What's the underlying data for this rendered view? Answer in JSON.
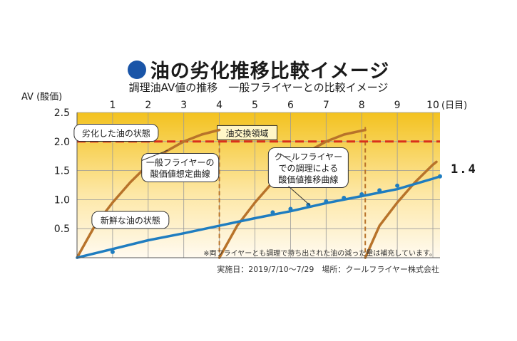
{
  "header": {
    "title": "油の劣化推移比較イメージ",
    "subtitle": "調理油AV値の推移　一般フライヤーとの比較イメージ"
  },
  "chart_data": {
    "type": "line",
    "title": "油の劣化推移比較イメージ",
    "subtitle": "調理油AV値の推移　一般フライヤーとの比較イメージ",
    "ylabel": "AV (酸価)",
    "xlabel": "(日目)",
    "xlim": [
      0,
      10.2
    ],
    "ylim": [
      0,
      2.5
    ],
    "x_ticks": [
      1,
      2,
      3,
      4,
      5,
      6,
      7,
      8,
      9,
      10
    ],
    "y_ticks": [
      "0.5",
      "1.0",
      "1.5",
      "2.0",
      "2.5"
    ],
    "y_tick_values": [
      0.5,
      1.0,
      1.5,
      2.0,
      2.5
    ],
    "grid": true,
    "threshold": {
      "value": 2.0,
      "label": "油交換領域",
      "color": "#d9301c"
    },
    "oil_change_days": [
      4.0,
      8.1
    ],
    "series": [
      {
        "name": "一般フライヤーの酸価値想定曲線",
        "color": "#b8732a",
        "segments": [
          [
            [
              0,
              0
            ],
            [
              0.5,
              0.55
            ],
            [
              1,
              0.95
            ],
            [
              1.5,
              1.3
            ],
            [
              2,
              1.6
            ],
            [
              2.5,
              1.83
            ],
            [
              3,
              2.0
            ],
            [
              3.5,
              2.12
            ],
            [
              4,
              2.2
            ]
          ],
          [
            [
              4,
              0
            ],
            [
              4.5,
              0.55
            ],
            [
              5,
              0.95
            ],
            [
              5.5,
              1.3
            ],
            [
              6,
              1.6
            ],
            [
              6.5,
              1.83
            ],
            [
              7,
              2.0
            ],
            [
              7.5,
              2.12
            ],
            [
              8.1,
              2.2
            ]
          ],
          [
            [
              8.1,
              0
            ],
            [
              8.5,
              0.55
            ],
            [
              9,
              0.95
            ],
            [
              9.5,
              1.3
            ],
            [
              10,
              1.6
            ],
            [
              10.1,
              1.65
            ]
          ]
        ]
      },
      {
        "name": "クールフライヤーでの調理による酸価値推移曲線",
        "color": "#1f7dc0",
        "segments": [
          [
            [
              0,
              0
            ],
            [
              1,
              0.15
            ],
            [
              2,
              0.3
            ],
            [
              3,
              0.42
            ],
            [
              4,
              0.55
            ],
            [
              5,
              0.68
            ],
            [
              6,
              0.8
            ],
            [
              7,
              0.94
            ],
            [
              8,
              1.06
            ],
            [
              9,
              1.18
            ],
            [
              10,
              1.36
            ],
            [
              10.2,
              1.4
            ]
          ]
        ],
        "points": [
          [
            1,
            0.1
          ],
          [
            5.5,
            0.78
          ],
          [
            6,
            0.84
          ],
          [
            6.5,
            0.91
          ],
          [
            7,
            0.97
          ],
          [
            7.5,
            1.03
          ],
          [
            8,
            1.09
          ],
          [
            8.5,
            1.16
          ],
          [
            9,
            1.24
          ],
          [
            10.2,
            1.4
          ]
        ]
      }
    ],
    "end_value_label": "1.4",
    "annotations": [
      {
        "id": "deteriorated",
        "text": "劣化した油の状態",
        "x": 1.1,
        "y": 2.15
      },
      {
        "id": "general-curve",
        "text": "一般フライヤーの酸価値想定曲線",
        "line1": "一般フライヤーの",
        "line2": "酸価値想定曲線",
        "x": 2.9,
        "y": 1.55
      },
      {
        "id": "cool-curve",
        "text": "クールフライヤーでの調理による酸価値推移曲線",
        "line1": "クールフライヤー",
        "line2": "での調理による",
        "line3": "酸価値推移曲線",
        "x": 6.5,
        "y": 1.55
      },
      {
        "id": "fresh",
        "text": "新鮮な油の状態",
        "x": 1.5,
        "y": 0.65
      }
    ],
    "footnote": "※両フライヤーとも調理で持ち出された油の減った量は補充しています。",
    "source": "実施日：2019/7/10〜7/29　場所：クールフライヤー株式会社"
  },
  "colors": {
    "background_top": "#f3c21f",
    "background_bottom": "#fffaf0",
    "grid": "#9a9a9a",
    "threshold": "#d9301c",
    "general": "#b8732a",
    "cool": "#1f7dc0",
    "title_dot": "#1a55a8"
  }
}
